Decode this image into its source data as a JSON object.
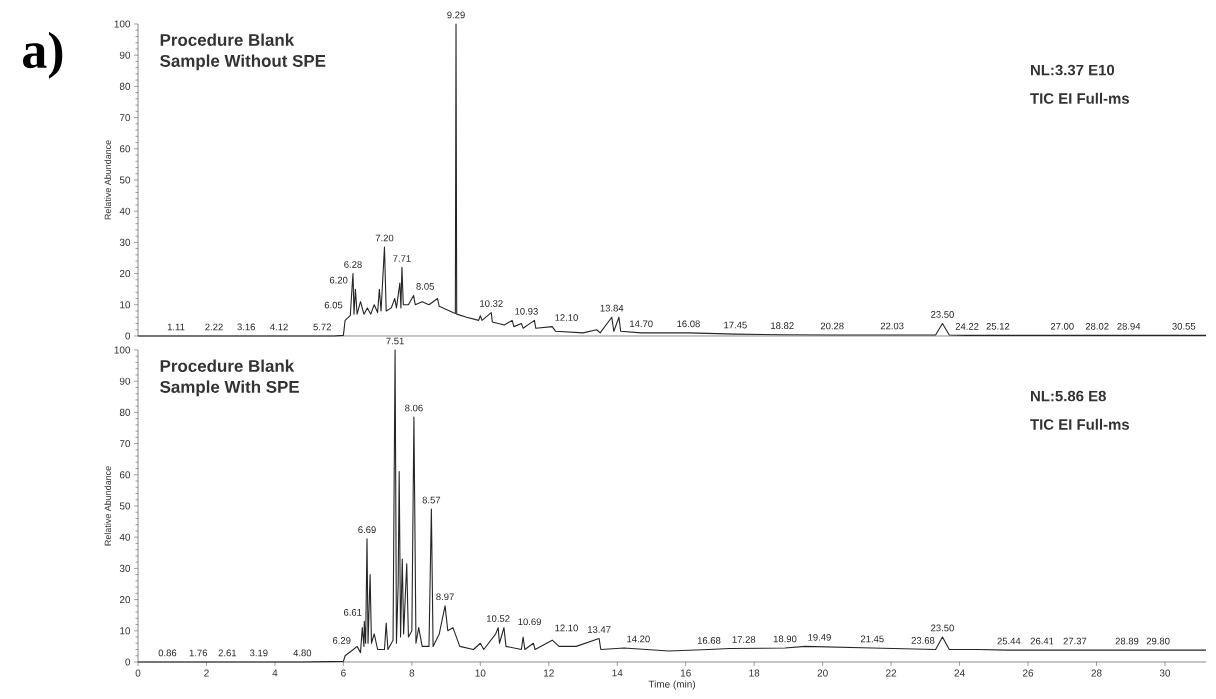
{
  "chart_data": [
    {
      "type": "line",
      "title": "Procedure Blank",
      "subtitle": "Sample Without SPE",
      "ylabel": "Relative Abundance",
      "x": [
        0,
        1.11,
        2.22,
        3.16,
        4.12,
        5.72,
        6.0,
        6.05,
        6.2,
        6.25,
        6.28,
        6.31,
        6.35,
        6.4,
        6.5,
        6.6,
        6.7,
        6.8,
        6.9,
        7.0,
        7.05,
        7.1,
        7.2,
        7.25,
        7.4,
        7.5,
        7.55,
        7.65,
        7.68,
        7.71,
        7.75,
        7.9,
        8.05,
        8.1,
        8.3,
        8.5,
        8.75,
        8.8,
        9.0,
        9.2,
        9.27,
        9.29,
        9.31,
        9.6,
        9.95,
        10.0,
        10.05,
        10.32,
        10.35,
        10.7,
        10.93,
        10.98,
        11.2,
        11.25,
        11.58,
        11.62,
        12.1,
        12.2,
        13.0,
        13.4,
        13.5,
        13.84,
        13.9,
        14.05,
        14.1,
        14.7,
        16.08,
        17.45,
        18.82,
        20.28,
        22.03,
        23.3,
        23.5,
        23.7,
        24.22,
        25.12,
        27.0,
        28.02,
        28.94,
        30.55,
        31.2
      ],
      "values": [
        0,
        0,
        0,
        0,
        0,
        0,
        0.2,
        5,
        6.5,
        15,
        20,
        7,
        15,
        7,
        11,
        7,
        9,
        7,
        10,
        7.5,
        15,
        8,
        28.5,
        8,
        9,
        12,
        9,
        17,
        9,
        22,
        10,
        10,
        13,
        10,
        11,
        10,
        12,
        9.5,
        8.5,
        7.5,
        7.2,
        100,
        7,
        6,
        5,
        6.5,
        5,
        7.5,
        4.5,
        3.5,
        5,
        3,
        4,
        2.5,
        5,
        2.5,
        3,
        1.5,
        1,
        2,
        1,
        6,
        1.5,
        6,
        1.5,
        1,
        1,
        0.6,
        0.4,
        0.3,
        0.3,
        0.3,
        4,
        0.3,
        0.2,
        0.2,
        0.2,
        0.2,
        0.2,
        0.2,
        0.2
      ],
      "color": "#262626",
      "xlim": [
        0,
        31.2
      ],
      "ylim": [
        0,
        100
      ],
      "xticks": [
        0,
        2,
        4,
        6,
        8,
        10,
        12,
        14,
        16,
        18,
        20,
        22,
        24,
        26,
        28,
        30
      ],
      "yticks": [
        0,
        10,
        20,
        30,
        40,
        50,
        60,
        70,
        80,
        90,
        100
      ],
      "tick_labels": "y",
      "annotations": [
        "a)",
        "NL:3.37 E10",
        "TIC EI Full-ms",
        {
          "text": "1.11",
          "x": 1.11,
          "y": 0
        },
        {
          "text": "2.22",
          "x": 2.22,
          "y": 0
        },
        {
          "text": "3.16",
          "x": 3.16,
          "y": 0
        },
        {
          "text": "4.12",
          "x": 4.12,
          "y": 0
        },
        {
          "text": "5.72",
          "x": 5.72,
          "y": 0
        },
        {
          "text": "6.05",
          "x": 6.05,
          "y": 7
        },
        {
          "text": "6.20",
          "x": 6.2,
          "y": 15
        },
        {
          "text": "6.28",
          "x": 6.28,
          "y": 20
        },
        {
          "text": "7.20",
          "x": 7.2,
          "y": 28.5
        },
        {
          "text": "7.71",
          "x": 7.71,
          "y": 22
        },
        {
          "text": "8.05",
          "x": 8.05,
          "y": 13
        },
        {
          "text": "9.29",
          "x": 9.29,
          "y": 100
        },
        {
          "text": "10.32",
          "x": 10.32,
          "y": 7.5
        },
        {
          "text": "10.93",
          "x": 10.93,
          "y": 5
        },
        {
          "text": "12.10",
          "x": 12.1,
          "y": 3
        },
        {
          "text": "13.84",
          "x": 13.84,
          "y": 6
        },
        {
          "text": "14.70",
          "x": 14.7,
          "y": 1
        },
        {
          "text": "16.08",
          "x": 16.08,
          "y": 1
        },
        {
          "text": "17.45",
          "x": 17.45,
          "y": 0.6
        },
        {
          "text": "18.82",
          "x": 18.82,
          "y": 0.4
        },
        {
          "text": "20.28",
          "x": 20.28,
          "y": 0.3
        },
        {
          "text": "22.03",
          "x": 22.03,
          "y": 0.3
        },
        {
          "text": "23.50",
          "x": 23.5,
          "y": 4
        },
        {
          "text": "24.22",
          "x": 24.22,
          "y": 0.2
        },
        {
          "text": "25.12",
          "x": 25.12,
          "y": 0.2
        },
        {
          "text": "27.00",
          "x": 27.0,
          "y": 0.2
        },
        {
          "text": "28.02",
          "x": 28.02,
          "y": 0.2
        },
        {
          "text": "28.94",
          "x": 28.94,
          "y": 0.2
        },
        {
          "text": "30.55",
          "x": 30.55,
          "y": 0.2
        }
      ]
    },
    {
      "type": "line",
      "title": "Procedure Blank",
      "subtitle": "Sample With SPE",
      "xlabel": "Time (min)",
      "ylabel": "Relative Abundance",
      "x": [
        0,
        0.86,
        1.76,
        2.61,
        3.19,
        4.8,
        6.0,
        6.05,
        6.29,
        6.4,
        6.5,
        6.55,
        6.6,
        6.61,
        6.65,
        6.69,
        6.72,
        6.78,
        6.82,
        6.9,
        7.0,
        7.2,
        7.25,
        7.3,
        7.45,
        7.51,
        7.55,
        7.6,
        7.63,
        7.67,
        7.72,
        7.76,
        7.85,
        7.9,
        8.0,
        8.06,
        8.12,
        8.2,
        8.3,
        8.5,
        8.57,
        8.62,
        8.8,
        8.97,
        9.05,
        9.2,
        9.4,
        9.8,
        10.0,
        10.1,
        10.45,
        10.52,
        10.56,
        10.69,
        10.75,
        11.2,
        11.25,
        11.3,
        11.55,
        11.6,
        12.1,
        12.3,
        12.8,
        13.47,
        13.52,
        14.2,
        15.5,
        16.68,
        17.28,
        18.9,
        19.49,
        21.45,
        23.3,
        23.5,
        23.7,
        24.5,
        25.44,
        26.41,
        27.37,
        28.89,
        29.8,
        31.2
      ],
      "values": [
        0,
        0,
        0,
        0,
        0,
        0,
        0.2,
        2,
        4,
        5,
        3,
        11,
        5,
        13,
        6,
        39.5,
        6,
        28,
        6,
        9,
        4,
        4,
        12.5,
        4,
        7,
        100,
        6,
        25,
        61,
        8,
        33,
        9,
        31.5,
        8,
        10,
        78.5,
        6,
        11,
        5,
        5,
        49,
        5,
        9,
        18,
        10,
        11,
        5,
        4,
        6,
        4,
        9,
        11,
        6,
        11,
        5,
        4,
        8,
        4,
        6,
        4,
        7,
        5,
        5,
        7.5,
        4,
        4.5,
        3.5,
        4,
        4.3,
        4.5,
        5,
        4.5,
        4,
        8,
        4,
        4,
        3.8,
        3.8,
        3.8,
        3.8,
        3.8,
        3.8
      ],
      "color": "#262626",
      "xlim": [
        0,
        31.2
      ],
      "ylim": [
        0,
        100
      ],
      "xticks": [
        0,
        2,
        4,
        6,
        8,
        10,
        12,
        14,
        16,
        18,
        20,
        22,
        24,
        26,
        28,
        30
      ],
      "yticks": [
        0,
        10,
        20,
        30,
        40,
        50,
        60,
        70,
        80,
        90,
        100
      ],
      "annotations": [
        "NL:5.86 E8",
        "TIC EI Full-ms",
        {
          "text": "0.86",
          "x": 0.86,
          "y": 0
        },
        {
          "text": "1.76",
          "x": 1.76,
          "y": 0
        },
        {
          "text": "2.61",
          "x": 2.61,
          "y": 0
        },
        {
          "text": "3.19",
          "x": 3.19,
          "y": 0
        },
        {
          "text": "4.80",
          "x": 4.8,
          "y": 0
        },
        {
          "text": "6.29",
          "x": 6.29,
          "y": 4
        },
        {
          "text": "6.61",
          "x": 6.61,
          "y": 13
        },
        {
          "text": "6.69",
          "x": 6.69,
          "y": 39.5
        },
        {
          "text": "7.51",
          "x": 7.51,
          "y": 100
        },
        {
          "text": "8.06",
          "x": 8.06,
          "y": 78.5
        },
        {
          "text": "8.57",
          "x": 8.57,
          "y": 49
        },
        {
          "text": "8.97",
          "x": 8.97,
          "y": 18
        },
        {
          "text": "10.52",
          "x": 10.52,
          "y": 11
        },
        {
          "text": "10.69",
          "x": 10.69,
          "y": 10
        },
        {
          "text": "12.10",
          "x": 12.1,
          "y": 8
        },
        {
          "text": "13.47",
          "x": 13.47,
          "y": 7.5
        },
        {
          "text": "14.20",
          "x": 14.2,
          "y": 4.5
        },
        {
          "text": "16.68",
          "x": 16.68,
          "y": 4
        },
        {
          "text": "17.28",
          "x": 17.28,
          "y": 4.3
        },
        {
          "text": "18.90",
          "x": 18.9,
          "y": 4.5
        },
        {
          "text": "19.49",
          "x": 19.49,
          "y": 5
        },
        {
          "text": "21.45",
          "x": 21.45,
          "y": 4.5
        },
        {
          "text": "23.50",
          "x": 23.5,
          "y": 8
        },
        {
          "text": "23.68",
          "x": 23.68,
          "y": 4
        },
        {
          "text": "25.44",
          "x": 25.44,
          "y": 3.8
        },
        {
          "text": "26.41",
          "x": 26.41,
          "y": 3.8
        },
        {
          "text": "27.37",
          "x": 27.37,
          "y": 3.8
        },
        {
          "text": "28.89",
          "x": 28.89,
          "y": 3.8
        },
        {
          "text": "29.80",
          "x": 29.8,
          "y": 3.8
        }
      ]
    }
  ]
}
